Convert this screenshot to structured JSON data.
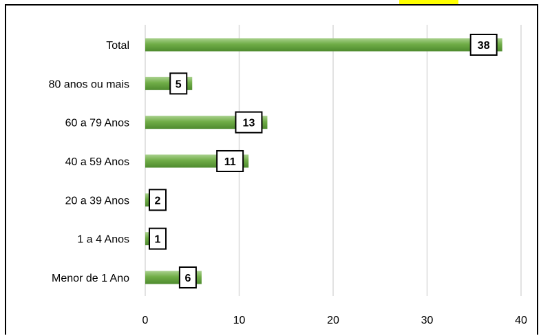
{
  "header": {
    "title": ""
  },
  "chart_data": {
    "type": "bar",
    "orientation": "horizontal",
    "categories": [
      "Total",
      "80 anos ou mais",
      "60 a 79 Anos",
      "40 a 59 Anos",
      "20 a 39 Anos",
      "1 a 4 Anos",
      "Menor de 1 Ano"
    ],
    "values": [
      38,
      5,
      13,
      11,
      2,
      1,
      6
    ],
    "xlim": [
      0,
      40
    ],
    "xticks": [
      0,
      10,
      20,
      30,
      40
    ],
    "grid": true,
    "legend": "none",
    "colors": {
      "bar_light": "#a9d18e",
      "bar_mid": "#70ad47",
      "bar_dark": "#4e8a2e",
      "grid": "#d9d9d9",
      "label_border": "#000000"
    }
  }
}
